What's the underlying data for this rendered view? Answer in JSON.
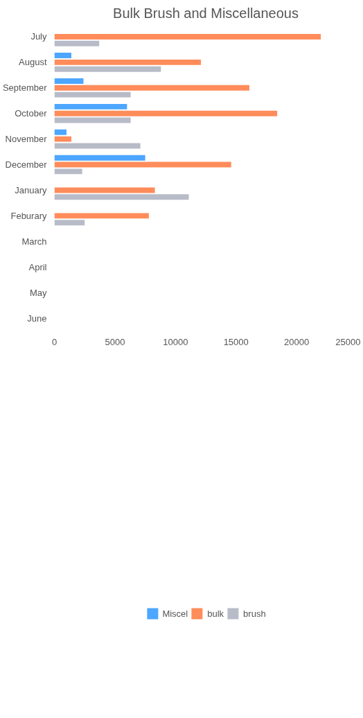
{
  "chart_data": {
    "type": "bar",
    "orientation": "horizontal",
    "title": "Bulk Brush and Miscellaneous",
    "categories": [
      "July",
      "August",
      "September",
      "October",
      "November",
      "December",
      "January",
      "Feburary",
      "March",
      "April",
      "May",
      "June"
    ],
    "series": [
      {
        "name": "Miscel",
        "color": "#4da6ff",
        "values": [
          null,
          1400,
          2400,
          6000,
          1000,
          7500,
          null,
          null,
          null,
          null,
          null,
          null
        ]
      },
      {
        "name": "bulk",
        "color": "#ff8c5a",
        "values": [
          22000,
          12100,
          16100,
          18400,
          1400,
          14600,
          8300,
          7800,
          null,
          null,
          null,
          null
        ]
      },
      {
        "name": "brush",
        "color": "#b8bcc8",
        "values": [
          3700,
          8800,
          6300,
          6300,
          7100,
          2300,
          11100,
          2500,
          null,
          null,
          null,
          null
        ]
      }
    ],
    "xlim": [
      0,
      25000
    ],
    "xticks": [
      0,
      5000,
      10000,
      15000,
      20000,
      25000
    ],
    "grid": false,
    "legend": "bottom"
  }
}
